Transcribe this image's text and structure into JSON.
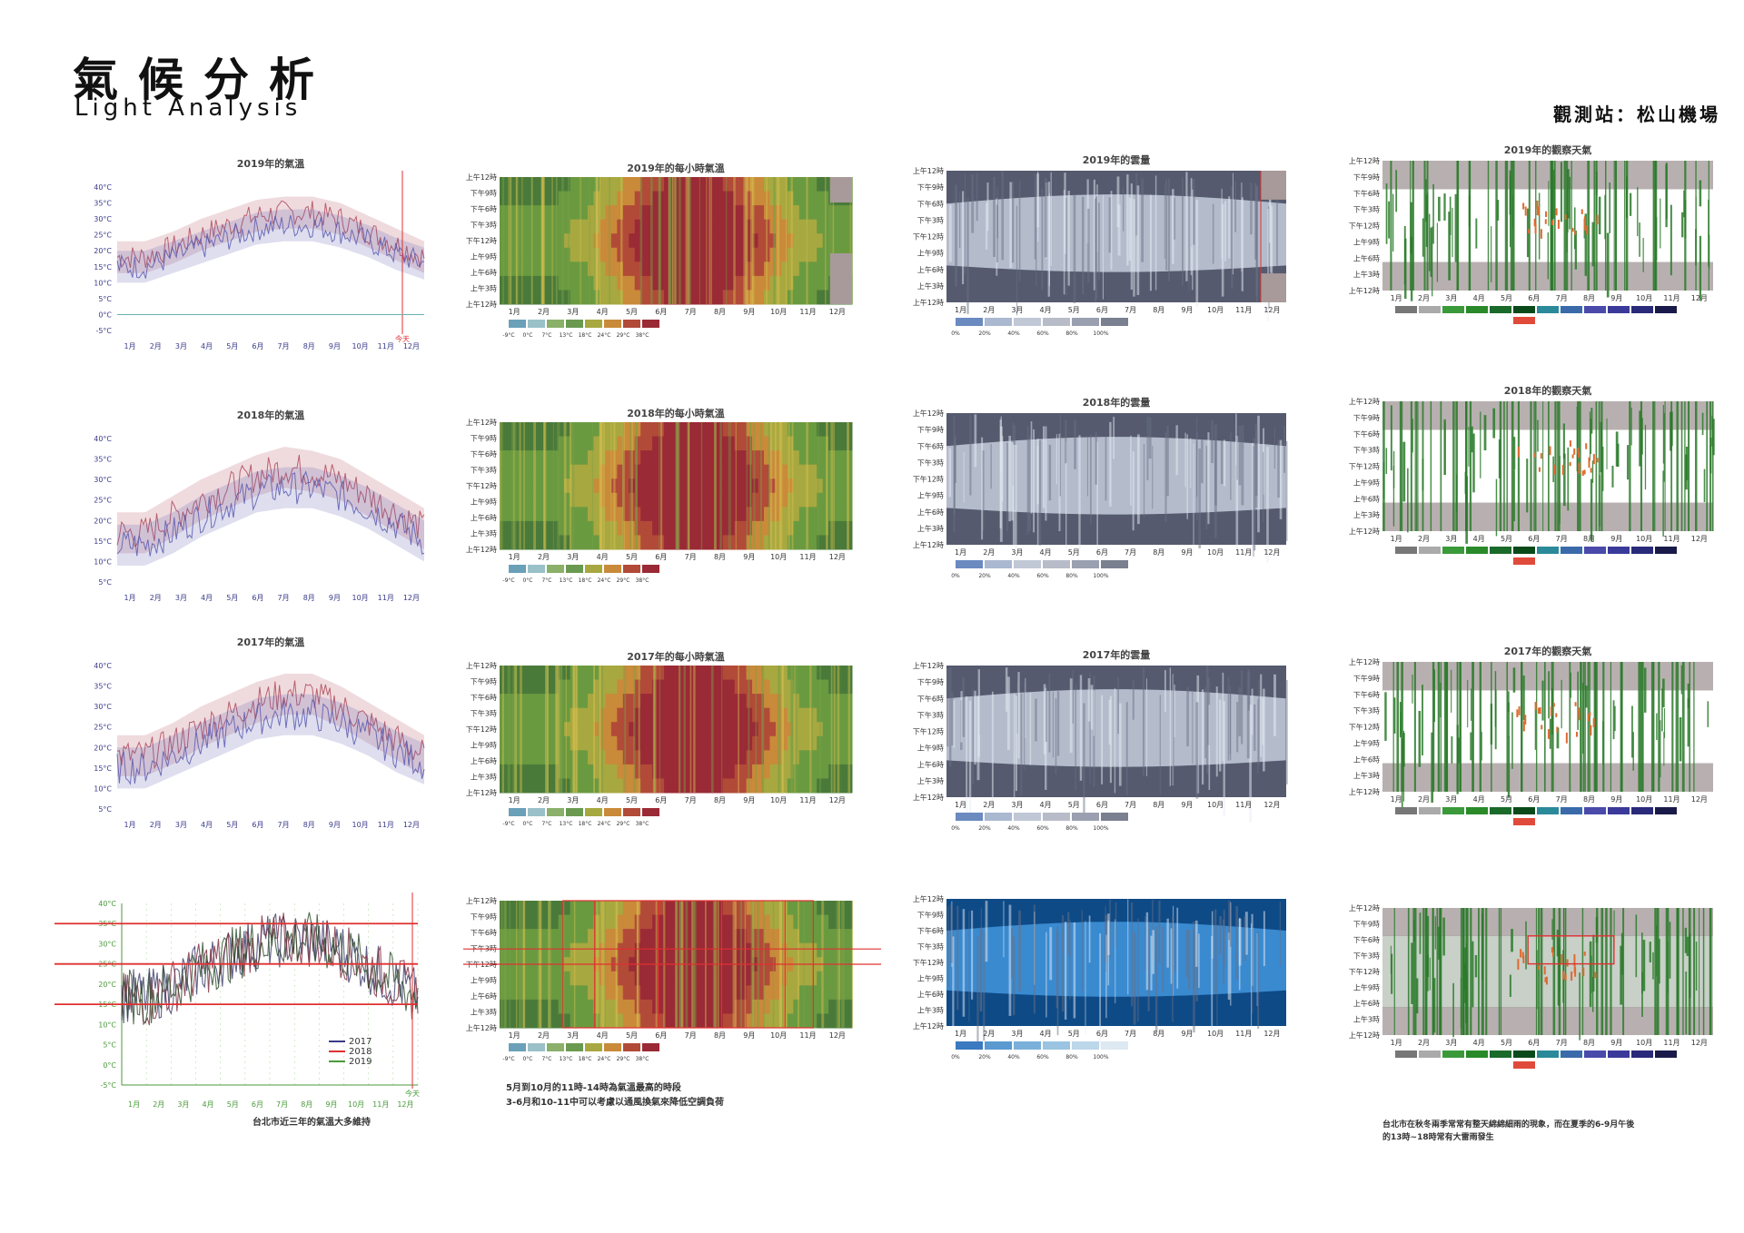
{
  "header": {
    "title_zh": "氣候分析",
    "title_en": "Light Analysis",
    "station": "觀測站：松山機場"
  },
  "colors": {
    "temp_red": "#b04a5a",
    "temp_blue": "#5a5ab0",
    "heat_red": "#a8323a",
    "heat_orange": "#d9a040",
    "heat_green": "#4a8a3a",
    "cloud_dark": "#555a6e",
    "cloud_light": "#b4bccc",
    "cloud_blue": "#1e6ab0",
    "weather_grey": "#b8b0b0",
    "weather_green": "#2a7a2a",
    "weather_orange": "#e06a30",
    "marker_red": "#e03030"
  },
  "icons": [],
  "common": {
    "months": [
      "1月",
      "2月",
      "3月",
      "4月",
      "5月",
      "6月",
      "7月",
      "8月",
      "9月",
      "10月",
      "11月",
      "12月"
    ],
    "hours": [
      "上午12時",
      "下午9時",
      "下午6時",
      "下午3時",
      "下午12時",
      "上午9時",
      "上午6時",
      "上午3時",
      "上午12時"
    ],
    "temp_ticks": [
      "40°C",
      "35°C",
      "30°C",
      "25°C",
      "20°C",
      "15°C",
      "10°C",
      "5°C",
      "0°C",
      "-5°C"
    ],
    "temp_ticks_short": [
      "40°C",
      "35°C",
      "30°C",
      "25°C",
      "20°C",
      "15°C",
      "10°C",
      "5°C"
    ],
    "heat_scale": [
      "-9°C",
      "0°C",
      "7°C",
      "13°C",
      "18°C",
      "24°C",
      "29°C",
      "38°C"
    ],
    "cloud_scale": [
      "0%",
      "20%",
      "40%",
      "60%",
      "80%",
      "100%"
    ],
    "today_label": "今天"
  },
  "row_2019": {
    "temp_title": "2019年的氣溫",
    "heat_title": "2019年的每小時氣溫",
    "cloud_title": "2019年的雲量",
    "weather_title": "2019年的觀察天氣"
  },
  "row_2018": {
    "temp_title": "2018年的氣溫",
    "heat_title": "2018年的每小時氣溫",
    "cloud_title": "2018年的雲量",
    "weather_title": "2018年的觀察天氣"
  },
  "row_2017": {
    "temp_title": "2017年的氣溫",
    "heat_title": "2017年的每小時氣溫",
    "cloud_title": "2017年的雲量",
    "weather_title": "2017年的觀察天氣"
  },
  "summary": {
    "legend": [
      "2017",
      "2018",
      "2019"
    ],
    "temp_note": "台北市近三年的氣溫大多維持",
    "heat_note_1": "5月到10月的11時-14時為氣溫最高的時段",
    "heat_note_2": "3-6月和10-11中可以考慮以通風換氣來降低空調負荷",
    "weather_note_1": "台北市在秋冬兩季常常有整天綿綿細雨的現象，而在夏季的6-9月午後",
    "weather_note_2": "的13時~18時常有大雷雨發生"
  },
  "chart_data": [
    {
      "type": "line",
      "title": "2019年的氣溫",
      "x": [
        "1月",
        "2月",
        "3月",
        "4月",
        "5月",
        "6月",
        "7月",
        "8月",
        "9月",
        "10月",
        "11月",
        "12月"
      ],
      "ylim": [
        -5,
        40
      ],
      "series": [
        {
          "values": [
            18,
            18,
            21,
            25,
            28,
            31,
            32,
            32,
            30,
            26,
            22,
            18
          ]
        },
        {
          "values": [
            15,
            15,
            18,
            21,
            24,
            27,
            28,
            28,
            26,
            23,
            19,
            16
          ]
        }
      ]
    },
    {
      "type": "line",
      "title": "2018年的氣溫",
      "x": [
        "1月",
        "2月",
        "3月",
        "4月",
        "5月",
        "6月",
        "7月",
        "8月",
        "9月",
        "10月",
        "11月",
        "12月"
      ],
      "ylim": [
        5,
        40
      ],
      "series": [
        {
          "values": [
            17,
            17,
            21,
            25,
            28,
            31,
            33,
            32,
            30,
            26,
            22,
            18
          ]
        },
        {
          "values": [
            14,
            14,
            17,
            21,
            24,
            27,
            28,
            28,
            26,
            23,
            19,
            15
          ]
        }
      ]
    },
    {
      "type": "line",
      "title": "2017年的氣溫",
      "x": [
        "1月",
        "2月",
        "3月",
        "4月",
        "5月",
        "6月",
        "7月",
        "8月",
        "9月",
        "10月",
        "11月",
        "12月"
      ],
      "ylim": [
        5,
        40
      ],
      "series": [
        {
          "values": [
            18,
            18,
            21,
            25,
            28,
            31,
            33,
            33,
            30,
            26,
            22,
            18
          ]
        },
        {
          "values": [
            15,
            15,
            18,
            21,
            24,
            27,
            28,
            28,
            26,
            23,
            19,
            16
          ]
        }
      ]
    },
    {
      "type": "line",
      "title": "",
      "x": [
        "1月",
        "2月",
        "3月",
        "4月",
        "5月",
        "6月",
        "7月",
        "8月",
        "9月",
        "10月",
        "11月",
        "12月"
      ],
      "ylim": [
        -5,
        40
      ],
      "series": [
        {
          "name": "2017",
          "values": [
            17,
            17,
            20,
            24,
            27,
            30,
            31,
            31,
            29,
            25,
            21,
            17
          ]
        },
        {
          "name": "2018",
          "values": [
            16,
            16,
            20,
            24,
            27,
            30,
            31,
            31,
            29,
            25,
            21,
            17
          ]
        },
        {
          "name": "2019",
          "values": [
            17,
            17,
            20,
            24,
            27,
            30,
            31,
            31,
            29,
            25,
            21,
            17
          ]
        }
      ]
    },
    {
      "type": "heatmap",
      "title": "2019年的每小時氣溫",
      "x": [
        "1月",
        "2月",
        "3月",
        "4月",
        "5月",
        "6月",
        "7月",
        "8月",
        "9月",
        "10月",
        "11月",
        "12月"
      ],
      "y": [
        "上午12時",
        "下午9時",
        "下午6時",
        "下午3時",
        "下午12時",
        "上午9時",
        "上午6時",
        "上午3時",
        "上午12時"
      ],
      "scale": [
        "-9°C",
        "0°C",
        "7°C",
        "13°C",
        "18°C",
        "24°C",
        "29°C",
        "38°C"
      ]
    },
    {
      "type": "heatmap",
      "title": "2019年的雲量",
      "x": [
        "1月",
        "2月",
        "3月",
        "4月",
        "5月",
        "6月",
        "7月",
        "8月",
        "9月",
        "10月",
        "11月",
        "12月"
      ],
      "scale": [
        "0%",
        "20%",
        "40%",
        "60%",
        "80%",
        "100%"
      ]
    },
    {
      "type": "heatmap",
      "title": "2019年的觀察天氣",
      "x": [
        "1月",
        "2月",
        "3月",
        "4月",
        "5月",
        "6月",
        "7月",
        "8月",
        "9月",
        "10月",
        "11月",
        "12月"
      ]
    }
  ]
}
